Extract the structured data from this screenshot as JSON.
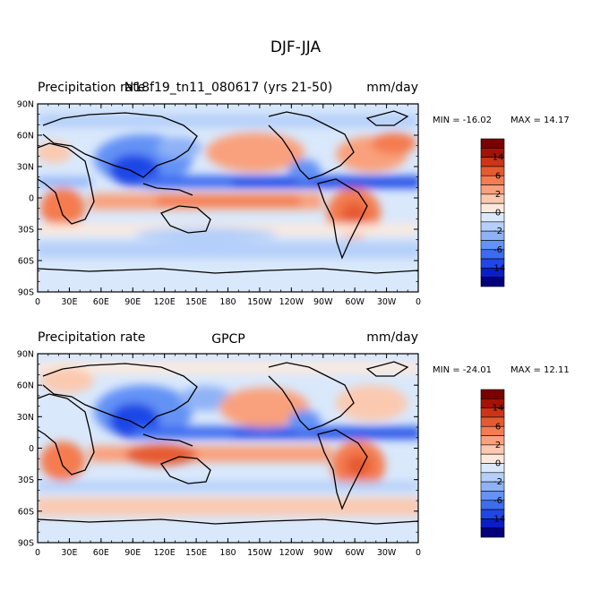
{
  "figure_title": "DJF-JJA",
  "chart_data": [
    {
      "type": "heatmap",
      "subtype": "filled-contour-map",
      "left_title": "Precipitation rate",
      "center_title": "N18f19_tn11_080617 (yrs 21-50)",
      "right_title": "mm/day",
      "min_label": "MIN = -16.02",
      "max_label": "MAX =  14.17",
      "min": -16.02,
      "max": 14.17,
      "x_ticks": [
        "0",
        "30E",
        "60E",
        "90E",
        "120E",
        "150E",
        "180",
        "150W",
        "120W",
        "90W",
        "60W",
        "30W",
        "0"
      ],
      "y_ticks": [
        "90N",
        "60N",
        "30N",
        "0",
        "30S",
        "60S",
        "90S"
      ],
      "colorbar_labels": [
        "14",
        "6",
        "2",
        "0",
        "-2",
        "-6",
        "-14"
      ]
    },
    {
      "type": "heatmap",
      "subtype": "filled-contour-map",
      "left_title": "Precipitation rate",
      "center_title": "GPCP",
      "right_title": "mm/day",
      "min_label": "MIN = -24.01",
      "max_label": "MAX =  12.11",
      "min": -24.01,
      "max": 12.11,
      "x_ticks": [
        "0",
        "30E",
        "60E",
        "90E",
        "120E",
        "150E",
        "180",
        "150W",
        "120W",
        "90W",
        "60W",
        "30W",
        "0"
      ],
      "y_ticks": [
        "90N",
        "60N",
        "30N",
        "0",
        "30S",
        "60S",
        "90S"
      ],
      "colorbar_labels": [
        "14",
        "6",
        "2",
        "0",
        "-2",
        "-6",
        "-14"
      ]
    }
  ],
  "colorbar": {
    "levels": [
      -20,
      -14,
      -10,
      -6,
      -4,
      -2,
      -1,
      0,
      1,
      2,
      4,
      6,
      10,
      14,
      20
    ],
    "colors": [
      "#02007b",
      "#0a1ec8",
      "#1f46e6",
      "#3c6cf0",
      "#6492f5",
      "#8fb2f7",
      "#b4cff9",
      "#d9e8fb",
      "#fde9dc",
      "#fbc9b0",
      "#f9a07c",
      "#f47c50",
      "#e65a30",
      "#cc3418",
      "#a61106",
      "#7a0000"
    ]
  }
}
